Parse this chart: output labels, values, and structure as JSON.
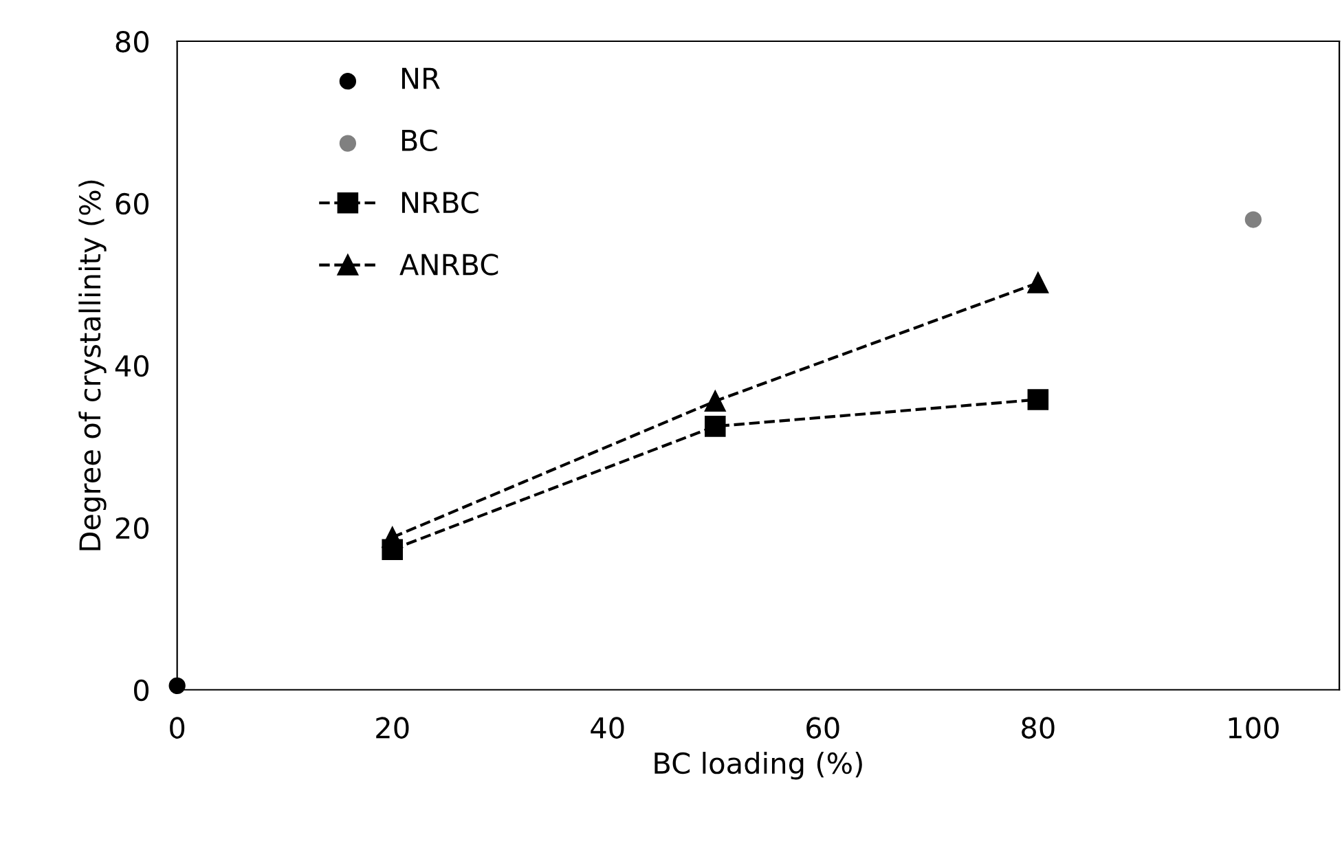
{
  "chart_data": {
    "type": "line",
    "xlabel": "BC loading (%)",
    "ylabel": "Degree of crystallinity (%)",
    "xlim": [
      0,
      108
    ],
    "xticks": [
      0,
      20,
      40,
      60,
      80,
      100
    ],
    "ylim": [
      0,
      80
    ],
    "yticks": [
      0,
      20,
      40,
      60,
      80
    ],
    "grid": false,
    "legend": "top left",
    "series": [
      {
        "name": "NR",
        "type": "scatter",
        "color": "#000000",
        "marker": "circle",
        "x": [
          0
        ],
        "values": [
          0.5
        ]
      },
      {
        "name": "BC",
        "type": "scatter",
        "color": "#808080",
        "marker": "circle",
        "x": [
          100
        ],
        "values": [
          58
        ]
      },
      {
        "name": "NRBC",
        "color": "#000000",
        "marker": "square",
        "line_style": "dashed",
        "x": [
          20,
          50,
          80
        ],
        "values": [
          17.3,
          32.5,
          35.8
        ]
      },
      {
        "name": "ANRBC",
        "color": "#000000",
        "marker": "triangle",
        "line_style": "dashed",
        "x": [
          20,
          50,
          80
        ],
        "values": [
          18.8,
          35.6,
          50.2
        ]
      }
    ]
  }
}
